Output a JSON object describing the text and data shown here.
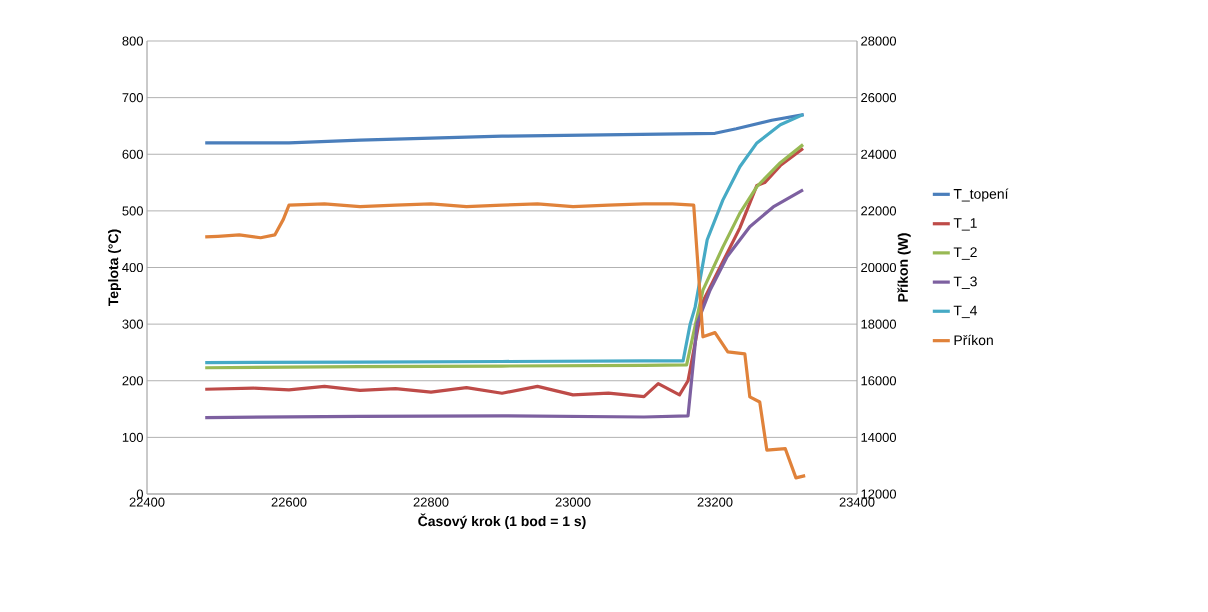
{
  "chart_data": {
    "type": "line",
    "xlabel": "Časový krok (1 bod = 1 s)",
    "ylabel": "Teplota (°C)",
    "y2label": "Příkon (W)",
    "xlim": [
      22400,
      23400
    ],
    "xticks": [
      22400,
      22600,
      22800,
      23000,
      23200,
      23400
    ],
    "ylim": [
      0,
      800
    ],
    "yticks": [
      0,
      100,
      200,
      300,
      400,
      500,
      600,
      700,
      800
    ],
    "y2lim": [
      12000,
      28000
    ],
    "y2ticks": [
      12000,
      14000,
      16000,
      18000,
      20000,
      22000,
      24000,
      26000,
      28000
    ],
    "grid": "y",
    "legend": "right",
    "marker": "none",
    "line_style": "solid",
    "series": [
      {
        "name": "T_topení",
        "color": "#4a7ebb",
        "x": [
          22482,
          22600,
          22700,
          22900,
          23150,
          23200,
          23230,
          23280,
          23325
        ],
        "values": [
          620,
          620,
          625,
          632,
          636,
          637,
          645,
          660,
          670
        ]
      },
      {
        "name": "T_1",
        "color": "#be4b48",
        "x": [
          22482,
          22550,
          22600,
          22650,
          22700,
          22750,
          22800,
          22850,
          22900,
          22950,
          23000,
          23050,
          23100,
          23120,
          23150,
          23162,
          23183,
          23211,
          23235,
          23259,
          23270,
          23292,
          23324
        ],
        "values": [
          185,
          187,
          184,
          190,
          183,
          186,
          180,
          188,
          178,
          190,
          175,
          178,
          172,
          195,
          175,
          200,
          340,
          410,
          470,
          545,
          550,
          580,
          610
        ]
      },
      {
        "name": "T_2",
        "color": "#98b954",
        "x": [
          22482,
          22700,
          22900,
          23100,
          23160,
          23183,
          23211,
          23235,
          23259,
          23292,
          23324
        ],
        "values": [
          223,
          225,
          226,
          227,
          228,
          360,
          436,
          496,
          543,
          585,
          617
        ]
      },
      {
        "name": "T_3",
        "color": "#7d60a0",
        "x": [
          22482,
          22700,
          22900,
          23100,
          23162,
          23175,
          23193,
          23217,
          23249,
          23282,
          23324
        ],
        "values": [
          135,
          137,
          138,
          136,
          138,
          302,
          360,
          419,
          472,
          507,
          537
        ]
      },
      {
        "name": "T_4",
        "color": "#46aac5",
        "x": [
          22482,
          22700,
          22900,
          23100,
          23155,
          23165,
          23172,
          23189,
          23211,
          23235,
          23259,
          23292,
          23324
        ],
        "values": [
          232,
          233,
          234,
          235,
          235,
          300,
          330,
          449,
          519,
          578,
          620,
          652,
          670
        ]
      },
      {
        "name": "Příkon",
        "color": "#e0823a",
        "axis": "y2",
        "x": [
          22482,
          22500,
          22530,
          22560,
          22580,
          22592,
          22600,
          22650,
          22700,
          22750,
          22800,
          22850,
          22900,
          22950,
          23000,
          23050,
          23100,
          23140,
          23170,
          23183,
          23200,
          23218,
          23242,
          23249,
          23263,
          23273,
          23299,
          23314,
          23327
        ],
        "values": [
          21080,
          21100,
          21150,
          21050,
          21150,
          21700,
          22200,
          22250,
          22150,
          22200,
          22250,
          22150,
          22200,
          22250,
          22150,
          22200,
          22250,
          22250,
          22200,
          17550,
          17700,
          17020,
          16950,
          15430,
          15250,
          13550,
          13600,
          12570,
          12650
        ]
      }
    ]
  }
}
